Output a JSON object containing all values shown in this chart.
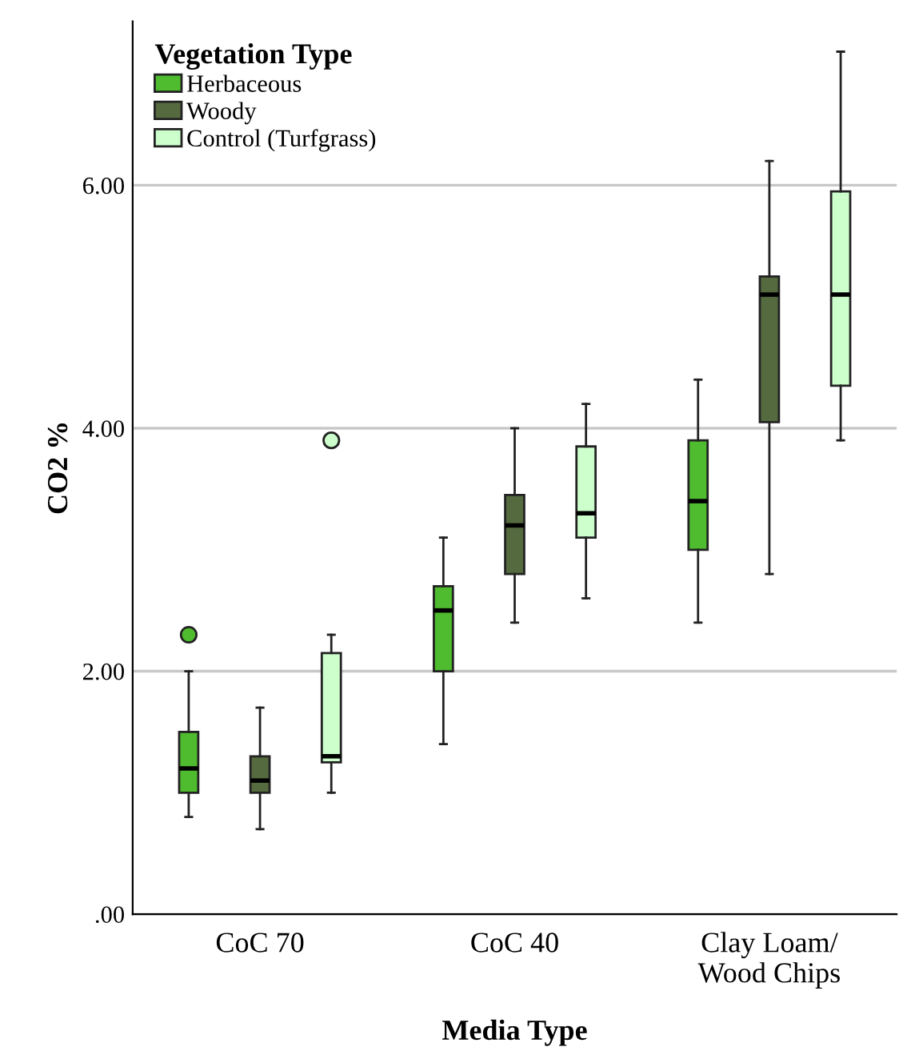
{
  "chart_data": {
    "type": "box",
    "xlabel": "Media Type",
    "ylabel": "CO2 %",
    "legend_title": "Vegetation Type",
    "legend": "top left",
    "grid": "y",
    "categories": [
      "CoC 70",
      "CoC 40",
      "Clay Loam/\nWood Chips"
    ],
    "ylim": [
      0,
      7.35
    ],
    "yticks": [
      {
        "value": 0,
        "label": ".00"
      },
      {
        "value": 2,
        "label": "2.00"
      },
      {
        "value": 4,
        "label": "4.00"
      },
      {
        "value": 6,
        "label": "6.00"
      }
    ],
    "series": [
      {
        "name": "Herbaceous",
        "color": "#4fbb2f",
        "boxes": [
          {
            "low": 0.8,
            "q1": 1.0,
            "median": 1.2,
            "q3": 1.5,
            "high": 2.0,
            "outliers": [
              2.3
            ]
          },
          {
            "low": 1.4,
            "q1": 2.0,
            "median": 2.5,
            "q3": 2.7,
            "high": 3.1
          },
          {
            "low": 2.4,
            "q1": 3.0,
            "median": 3.4,
            "q3": 3.9,
            "high": 4.4
          }
        ]
      },
      {
        "name": "Woody",
        "color": "#556b3f",
        "boxes": [
          {
            "low": 0.7,
            "q1": 1.0,
            "median": 1.1,
            "q3": 1.3,
            "high": 1.7
          },
          {
            "low": 2.4,
            "q1": 2.8,
            "median": 3.2,
            "q3": 3.45,
            "high": 4.0
          },
          {
            "low": 2.8,
            "q1": 4.05,
            "median": 5.1,
            "q3": 5.25,
            "high": 6.2
          }
        ]
      },
      {
        "name": "Control (Turfgrass)",
        "color": "#ccffcc",
        "boxes": [
          {
            "low": 1.0,
            "q1": 1.25,
            "median": 1.3,
            "q3": 2.15,
            "high": 2.3,
            "outliers": [
              3.9
            ]
          },
          {
            "low": 2.6,
            "q1": 3.1,
            "median": 3.3,
            "q3": 3.85,
            "high": 4.2
          },
          {
            "low": 3.9,
            "q1": 4.35,
            "median": 5.1,
            "q3": 5.95,
            "high": 7.1
          }
        ]
      }
    ]
  }
}
